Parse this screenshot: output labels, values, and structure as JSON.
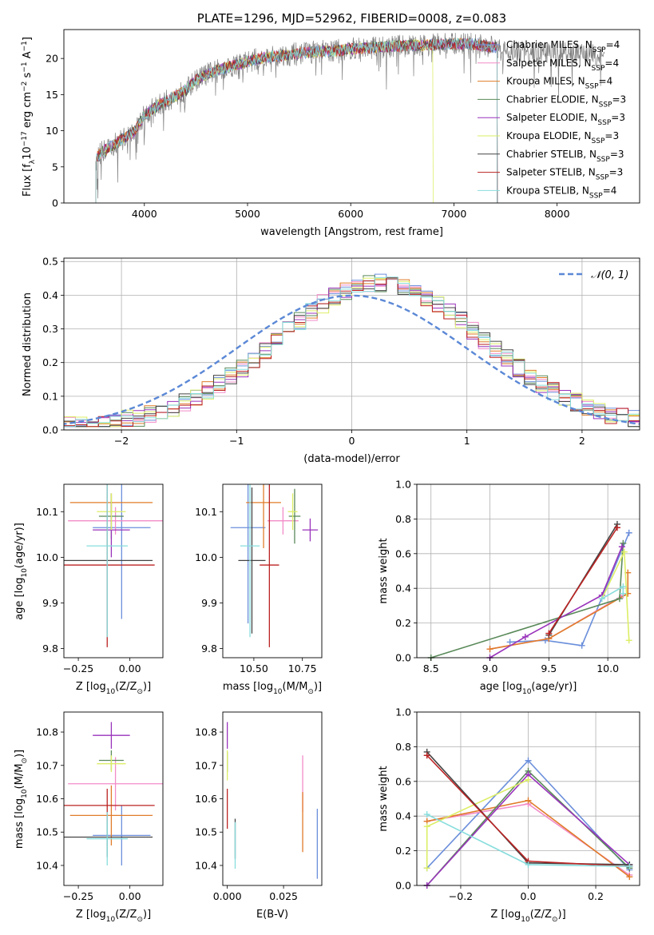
{
  "chart_data": [
    {
      "id": "spectrum",
      "type": "line",
      "title": "PLATE=1296, MJD=52962, FIBERID=0008, z=0.083",
      "xlabel": "wavelength [Angstrom, rest frame]",
      "ylabel": "Flux [fλ10⁻¹⁷ erg cm⁻² s⁻¹ A⁻¹]",
      "xlim": [
        3220,
        8800
      ],
      "ylim": [
        0,
        24
      ],
      "xticks": [
        "4000",
        "5000",
        "6000",
        "7000",
        "8000"
      ],
      "yticks": [
        "0",
        "5",
        "10",
        "15",
        "20"
      ],
      "legend_position": "upper-right",
      "series": [
        {
          "name": "Chabrier MILES, N_SSP=4",
          "color": "#6b8fdb"
        },
        {
          "name": "Salpeter MILES, N_SSP=4",
          "color": "#f28bc8"
        },
        {
          "name": "Kroupa MILES, N_SSP=4",
          "color": "#e07c2a"
        },
        {
          "name": "Chabrier ELODIE, N_SSP=3",
          "color": "#5a8a5a"
        },
        {
          "name": "Salpeter ELODIE, N_SSP=3",
          "color": "#9933bb"
        },
        {
          "name": "Kroupa ELODIE, N_SSP=3",
          "color": "#ddee66"
        },
        {
          "name": "Chabrier STELIB, N_SSP=3",
          "color": "#444444"
        },
        {
          "name": "Salpeter STELIB, N_SSP=3",
          "color": "#bb2222"
        },
        {
          "name": "Kroupa STELIB, N_SSP=4",
          "color": "#88dddd"
        }
      ],
      "data_color": "#808080",
      "continuum": {
        "x": [
          3530,
          3600,
          3700,
          3800,
          3900,
          4000,
          4100,
          4200,
          4300,
          4400,
          4500,
          4600,
          4800,
          5000,
          5200,
          5400,
          5600,
          5800,
          6000,
          6200,
          6400,
          6600,
          6800,
          7000,
          7200,
          7400
        ],
        "y": [
          6.2,
          7.2,
          8.0,
          9.0,
          9.8,
          12.2,
          13.2,
          14.0,
          14.8,
          15.6,
          17.0,
          17.8,
          18.8,
          19.6,
          20.2,
          20.5,
          20.9,
          21.0,
          21.3,
          21.5,
          21.7,
          21.8,
          21.9,
          22.0,
          22.0,
          21.5
        ]
      },
      "data_extent": [
        3530,
        8460
      ],
      "model_extent": [
        3530,
        7420
      ]
    },
    {
      "id": "residuals",
      "type": "line",
      "title": "",
      "xlabel": "(data-model)/error",
      "ylabel": "Normed distribution",
      "xlim": [
        -2.5,
        2.5
      ],
      "ylim": [
        0,
        0.51
      ],
      "xticks": [
        "−2",
        "−1",
        "0",
        "1",
        "2"
      ],
      "yticks": [
        "0.0",
        "0.1",
        "0.2",
        "0.3",
        "0.4",
        "0.5"
      ],
      "grid": true,
      "legend_position": "upper-right",
      "reference": {
        "name": "𝒩(0, 1)",
        "color": "#5b88d6",
        "mean": 0,
        "sigma": 1
      },
      "bin_width": 0.1
    },
    {
      "id": "age-vs-Z",
      "type": "scatter",
      "xlabel": "Z [log₁₀(Z/Z⊙)]",
      "ylabel": "age  [log₁₀(age/yr)]",
      "xlim": [
        -0.32,
        0.16
      ],
      "ylim": [
        9.78,
        10.16
      ],
      "xticks": [
        "−0.25",
        "0.00"
      ],
      "yticks": [
        "9.8",
        "9.9",
        "10.0",
        "10.1"
      ],
      "points": [
        {
          "x": -0.04,
          "y": 10.065,
          "xerr": 0.14,
          "yerr": 0.2,
          "color": "#6b8fdb"
        },
        {
          "x": -0.07,
          "y": 10.08,
          "xerr": 0.23,
          "yerr": 0.03,
          "color": "#f28bc8"
        },
        {
          "x": -0.09,
          "y": 10.12,
          "xerr": 0.2,
          "yerr": 0.02,
          "color": "#e07c2a"
        },
        {
          "x": -0.09,
          "y": 10.09,
          "xerr": 0.06,
          "yerr": 0.05,
          "color": "#5a8a5a"
        },
        {
          "x": -0.09,
          "y": 10.06,
          "xerr": 0.09,
          "yerr": 0.06,
          "color": "#9933bb"
        },
        {
          "x": -0.09,
          "y": 10.1,
          "xerr": 0.07,
          "yerr": 0.04,
          "color": "#ddee66"
        },
        {
          "x": -0.11,
          "y": 9.993,
          "xerr": 0.22,
          "yerr": 0.16,
          "color": "#444444"
        },
        {
          "x": -0.11,
          "y": 9.983,
          "xerr": 0.23,
          "yerr": 0.18,
          "color": "#bb2222"
        },
        {
          "x": -0.11,
          "y": 10.025,
          "xerr": 0.1,
          "yerr": 0.2,
          "color": "#88dddd"
        }
      ]
    },
    {
      "id": "age-vs-mass",
      "type": "scatter",
      "xlabel": "mass [log₁₀(M/M⊙)]",
      "ylabel": "",
      "xlim": [
        10.34,
        10.85
      ],
      "ylim": [
        9.78,
        10.16
      ],
      "xticks": [
        "10.50",
        "10.75"
      ],
      "yticks": [
        "9.8",
        "9.9",
        "10.0",
        "10.1"
      ],
      "points": [
        {
          "x": 10.47,
          "y": 10.065,
          "xerr": 0.09,
          "yerr": 0.21,
          "color": "#6b8fdb"
        },
        {
          "x": 10.65,
          "y": 10.08,
          "xerr": 0.08,
          "yerr": 0.03,
          "color": "#f28bc8"
        },
        {
          "x": 10.55,
          "y": 10.12,
          "xerr": 0.09,
          "yerr": 0.1,
          "color": "#e07c2a"
        },
        {
          "x": 10.71,
          "y": 10.09,
          "xerr": 0.03,
          "yerr": 0.06,
          "color": "#5a8a5a"
        },
        {
          "x": 10.79,
          "y": 10.06,
          "xerr": 0.04,
          "yerr": 0.025,
          "color": "#9933bb"
        },
        {
          "x": 10.7,
          "y": 10.1,
          "xerr": 0.025,
          "yerr": 0.04,
          "color": "#ddee66"
        },
        {
          "x": 10.49,
          "y": 9.993,
          "xerr": 0.07,
          "yerr": 0.16,
          "color": "#444444"
        },
        {
          "x": 10.58,
          "y": 9.983,
          "xerr": 0.05,
          "yerr": 0.18,
          "color": "#bb2222"
        },
        {
          "x": 10.48,
          "y": 10.025,
          "xerr": 0.05,
          "yerr": 0.2,
          "color": "#88dddd"
        }
      ]
    },
    {
      "id": "mass-weight-vs-age",
      "type": "line",
      "xlabel": "age  [log₁₀(age/yr)]",
      "ylabel": "mass weight",
      "xlim": [
        8.38,
        10.27
      ],
      "ylim": [
        0,
        1.0
      ],
      "xticks": [
        "8.5",
        "9.0",
        "9.5",
        "10.0"
      ],
      "yticks": [
        "0.0",
        "0.2",
        "0.4",
        "0.6",
        "0.8",
        "1.0"
      ],
      "grid": true,
      "series": [
        {
          "color": "#6b8fdb",
          "x": [
            9.17,
            9.47,
            9.78,
            10.18
          ],
          "y": [
            0.09,
            0.1,
            0.07,
            0.72
          ]
        },
        {
          "color": "#f28bc8",
          "x": [
            9.0,
            9.5,
            10.13
          ],
          "y": [
            0.05,
            0.11,
            0.36
          ]
        },
        {
          "color": "#e07c2a",
          "x": [
            9.0,
            9.5,
            10.17,
            10.17
          ],
          "y": [
            0.05,
            0.11,
            0.37,
            0.49
          ]
        },
        {
          "color": "#5a8a5a",
          "x": [
            8.5,
            10.1,
            10.13
          ],
          "y": [
            0.0,
            0.34,
            0.66
          ]
        },
        {
          "color": "#9933bb",
          "x": [
            9.0,
            9.3,
            9.95,
            10.12
          ],
          "y": [
            0.0,
            0.12,
            0.36,
            0.64
          ]
        },
        {
          "color": "#ddee66",
          "x": [
            9.95,
            10.14,
            10.18
          ],
          "y": [
            0.34,
            0.61,
            0.1
          ]
        },
        {
          "color": "#444444",
          "x": [
            9.5,
            10.08
          ],
          "y": [
            0.13,
            0.77
          ]
        },
        {
          "color": "#bb2222",
          "x": [
            9.5,
            10.08
          ],
          "y": [
            0.14,
            0.75
          ]
        },
        {
          "color": "#88dddd",
          "x": [
            9.95,
            10.13,
            10.13
          ],
          "y": [
            0.34,
            0.41,
            0.37
          ]
        }
      ]
    },
    {
      "id": "mass-vs-Z",
      "type": "scatter",
      "xlabel": "Z [log₁₀(Z/Z⊙)]",
      "ylabel": "mass [log₁₀(M/M⊙)]",
      "xlim": [
        -0.32,
        0.16
      ],
      "ylim": [
        10.34,
        10.86
      ],
      "xticks": [
        "−0.25",
        "0.00"
      ],
      "yticks": [
        "10.4",
        "10.5",
        "10.6",
        "10.7",
        "10.8"
      ],
      "points": [
        {
          "x": -0.04,
          "y": 10.49,
          "xerr": 0.14,
          "yerr": 0.09,
          "color": "#6b8fdb"
        },
        {
          "x": -0.07,
          "y": 10.645,
          "xerr": 0.23,
          "yerr": 0.08,
          "color": "#f28bc8"
        },
        {
          "x": -0.09,
          "y": 10.55,
          "xerr": 0.2,
          "yerr": 0.09,
          "color": "#e07c2a"
        },
        {
          "x": -0.09,
          "y": 10.715,
          "xerr": 0.06,
          "yerr": 0.03,
          "color": "#5a8a5a"
        },
        {
          "x": -0.09,
          "y": 10.79,
          "xerr": 0.09,
          "yerr": 0.04,
          "color": "#9933bb"
        },
        {
          "x": -0.09,
          "y": 10.705,
          "xerr": 0.07,
          "yerr": 0.025,
          "color": "#ddee66"
        },
        {
          "x": -0.11,
          "y": 10.485,
          "xerr": 0.22,
          "yerr": 0.06,
          "color": "#444444"
        },
        {
          "x": -0.11,
          "y": 10.58,
          "xerr": 0.23,
          "yerr": 0.05,
          "color": "#bb2222"
        },
        {
          "x": -0.11,
          "y": 10.48,
          "xerr": 0.1,
          "yerr": 0.08,
          "color": "#88dddd"
        }
      ]
    },
    {
      "id": "mass-vs-ebv",
      "type": "scatter",
      "xlabel": "E(B-V)",
      "ylabel": "",
      "xlim": [
        -0.002,
        0.042
      ],
      "ylim": [
        10.34,
        10.86
      ],
      "xticks": [
        "0.000",
        "0.025"
      ],
      "yticks": [
        "10.4",
        "10.5",
        "10.6",
        "10.7",
        "10.8"
      ],
      "points": [
        {
          "x": 0.04,
          "y": 10.465,
          "yerr": 0.105,
          "color": "#6b8fdb"
        },
        {
          "x": 0.0335,
          "y": 10.645,
          "yerr": 0.085,
          "color": "#f28bc8"
        },
        {
          "x": 0.0335,
          "y": 10.53,
          "yerr": 0.09,
          "color": "#e07c2a"
        },
        {
          "x": 0.0,
          "y": 10.71,
          "yerr": 0.03,
          "color": "#5a8a5a"
        },
        {
          "x": 0.0,
          "y": 10.79,
          "yerr": 0.04,
          "color": "#9933bb"
        },
        {
          "x": 0.0,
          "y": 10.7,
          "yerr": 0.045,
          "color": "#ddee66"
        },
        {
          "x": 0.0035,
          "y": 10.48,
          "yerr": 0.06,
          "color": "#444444"
        },
        {
          "x": 0.0,
          "y": 10.57,
          "yerr": 0.06,
          "color": "#bb2222"
        },
        {
          "x": 0.0035,
          "y": 10.46,
          "yerr": 0.07,
          "color": "#88dddd"
        }
      ]
    },
    {
      "id": "mass-weight-vs-Z",
      "type": "line",
      "xlabel": "Z [log₁₀(Z/Z⊙)]",
      "ylabel": "mass weight",
      "xlim": [
        -0.33,
        0.33
      ],
      "ylim": [
        0,
        1.0
      ],
      "xticks": [
        "−0.2",
        "0.0",
        "0.2"
      ],
      "yticks": [
        "0.0",
        "0.2",
        "0.4",
        "0.6",
        "0.8",
        "1.0"
      ],
      "grid": true,
      "series": [
        {
          "color": "#6b8fdb",
          "x": [
            -0.3,
            0.0,
            0.3
          ],
          "y": [
            0.1,
            0.72,
            0.09
          ]
        },
        {
          "color": "#f28bc8",
          "x": [
            -0.3,
            0.0,
            0.3
          ],
          "y": [
            0.37,
            0.47,
            0.06
          ]
        },
        {
          "color": "#e07c2a",
          "x": [
            -0.3,
            0.0,
            0.3
          ],
          "y": [
            0.37,
            0.49,
            0.05
          ]
        },
        {
          "color": "#5a8a5a",
          "x": [
            -0.3,
            0.0,
            0.3
          ],
          "y": [
            0.0,
            0.66,
            0.1
          ]
        },
        {
          "color": "#9933bb",
          "x": [
            -0.3,
            0.0,
            0.3
          ],
          "y": [
            0.0,
            0.64,
            0.12
          ]
        },
        {
          "color": "#ddee66",
          "x": [
            -0.3,
            -0.3,
            0.0
          ],
          "y": [
            0.1,
            0.34,
            0.61
          ]
        },
        {
          "color": "#444444",
          "x": [
            -0.3,
            0.0,
            0.3
          ],
          "y": [
            0.77,
            0.13,
            0.12
          ]
        },
        {
          "color": "#bb2222",
          "x": [
            -0.3,
            0.0,
            0.3
          ],
          "y": [
            0.75,
            0.14,
            0.11
          ]
        },
        {
          "color": "#88dddd",
          "x": [
            -0.3,
            0.0,
            0.3
          ],
          "y": [
            0.41,
            0.12,
            0.11
          ]
        }
      ]
    }
  ]
}
